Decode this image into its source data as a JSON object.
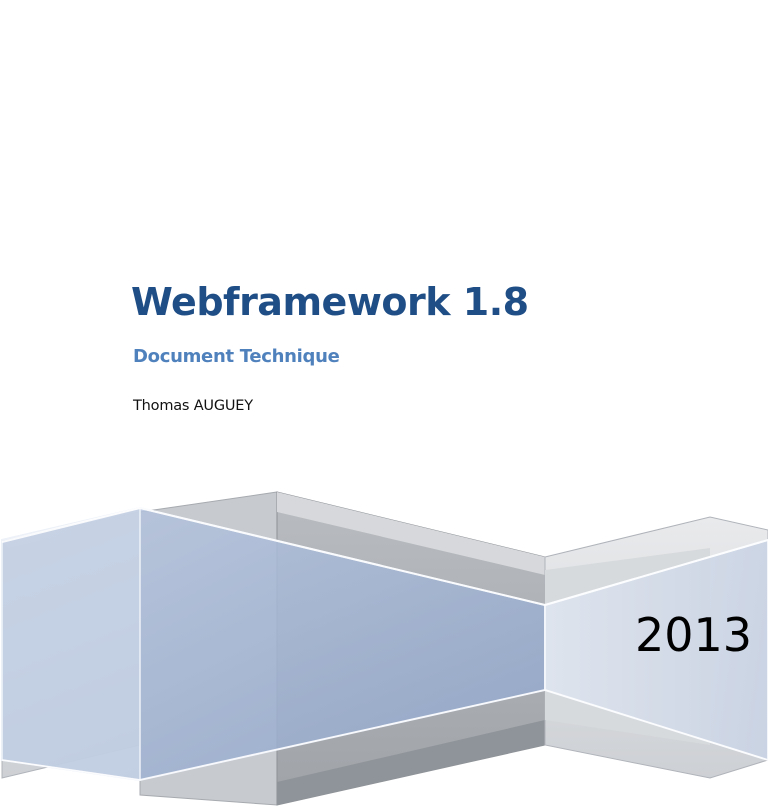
{
  "cover": {
    "title": "Webframework 1.8",
    "subtitle": "Document Technique",
    "author": "Thomas AUGUEY",
    "year": "2013"
  },
  "colors": {
    "title": "#1f4e86",
    "subtitle": "#4f81bd",
    "ribbon_blue": "#a9b9d6",
    "ribbon_gray": "#c4c7cb"
  }
}
